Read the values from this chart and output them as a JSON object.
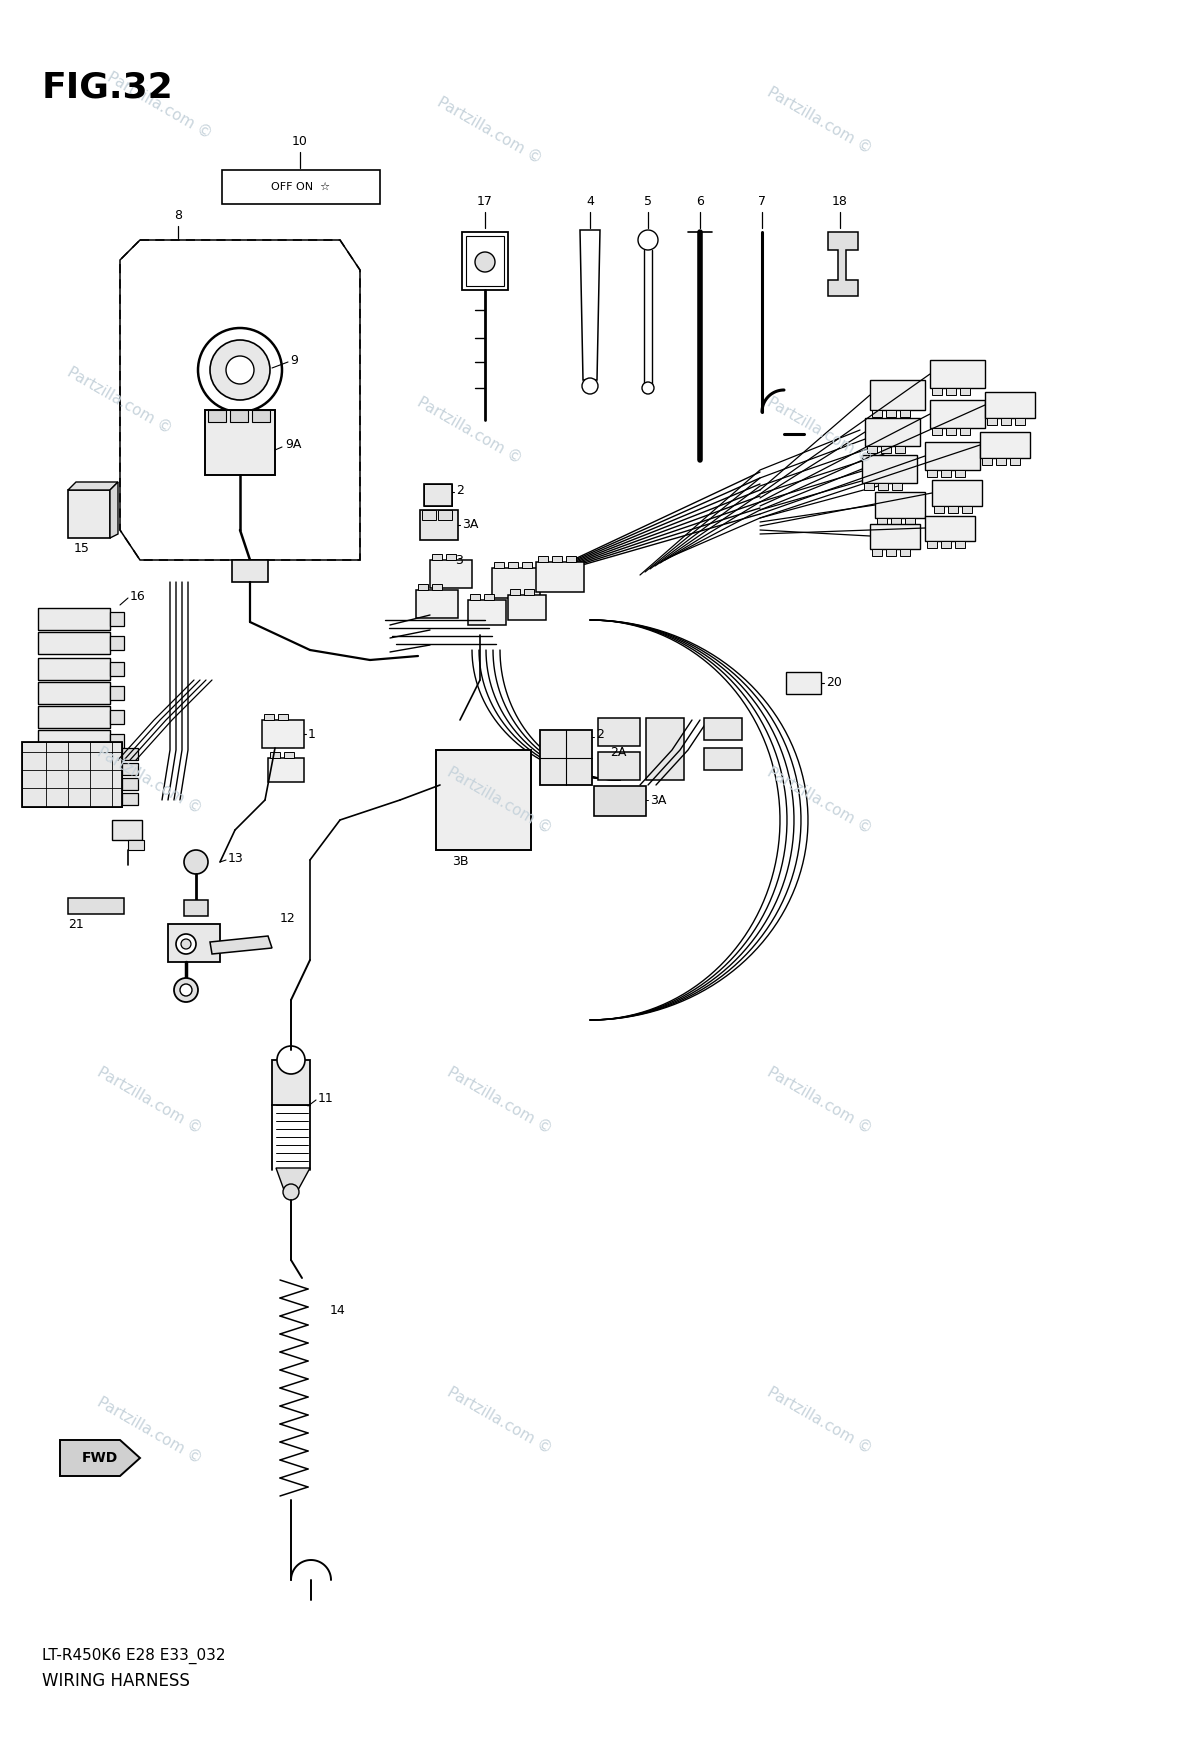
{
  "fig_title": "FIG.32",
  "subtitle": "LT-R450K6 E28 E33_032",
  "diagram_name": "WIRING HARNESS",
  "bg_color": "#ffffff",
  "lc": "#000000",
  "wc": "#c8d4dc",
  "wm": "Partzilla.com ©",
  "fw": 12.0,
  "fh": 17.38,
  "dpi": 100
}
